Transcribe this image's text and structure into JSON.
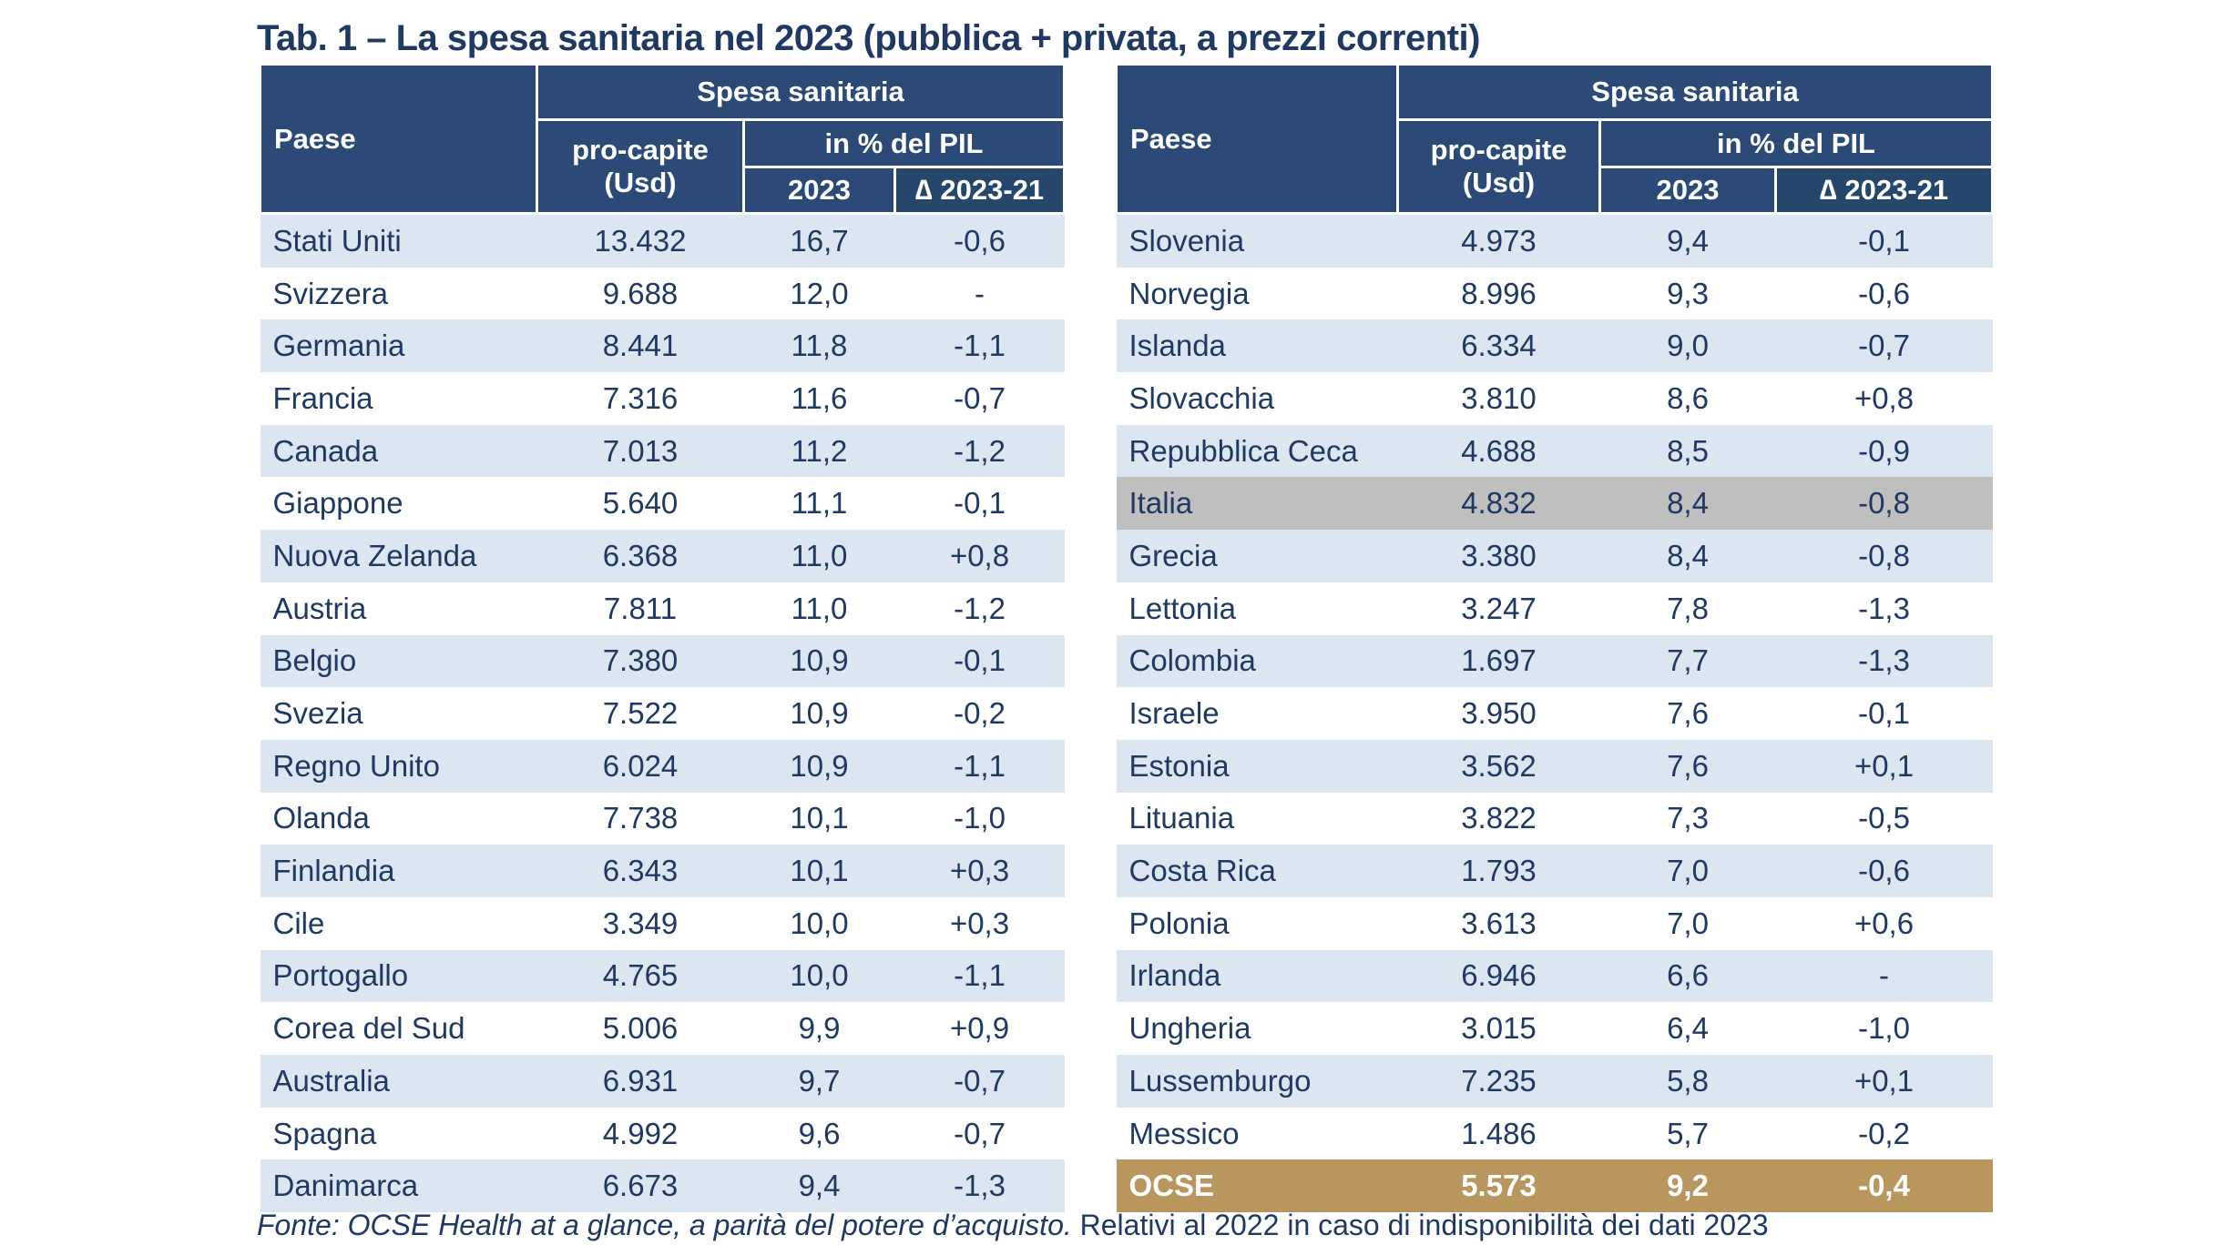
{
  "title": "Tab. 1 – La spesa sanitaria nel 2023 (pubblica + privata, a prezzi correnti)",
  "headers": {
    "country": "Paese",
    "group": "Spesa sanitaria",
    "per_capita": "pro-capite (Usd)",
    "pct_gdp": "in % del PIL",
    "year": "2023",
    "delta": "∆ 2023-21"
  },
  "colors": {
    "header": "#2b4a78",
    "stripe": "#dce6f0",
    "highlight": "#bfbfbf",
    "total": "#b8965d",
    "text": "#1f3864"
  },
  "left_rows": [
    [
      "Stati Uniti",
      "13.432",
      "16,7",
      "-0,6"
    ],
    [
      "Svizzera",
      "9.688",
      "12,0",
      "-"
    ],
    [
      "Germania",
      "8.441",
      "11,8",
      "-1,1"
    ],
    [
      "Francia",
      "7.316",
      "11,6",
      "-0,7"
    ],
    [
      "Canada",
      "7.013",
      "11,2",
      "-1,2"
    ],
    [
      "Giappone",
      "5.640",
      "11,1",
      "-0,1"
    ],
    [
      "Nuova Zelanda",
      "6.368",
      "11,0",
      "+0,8"
    ],
    [
      "Austria",
      "7.811",
      "11,0",
      "-1,2"
    ],
    [
      "Belgio",
      "7.380",
      "10,9",
      "-0,1"
    ],
    [
      "Svezia",
      "7.522",
      "10,9",
      "-0,2"
    ],
    [
      "Regno Unito",
      "6.024",
      "10,9",
      "-1,1"
    ],
    [
      "Olanda",
      "7.738",
      "10,1",
      "-1,0"
    ],
    [
      "Finlandia",
      "6.343",
      "10,1",
      "+0,3"
    ],
    [
      "Cile",
      "3.349",
      "10,0",
      "+0,3"
    ],
    [
      "Portogallo",
      "4.765",
      "10,0",
      "-1,1"
    ],
    [
      "Corea del Sud",
      "5.006",
      "9,9",
      "+0,9"
    ],
    [
      "Australia",
      "6.931",
      "9,7",
      "-0,7"
    ],
    [
      "Spagna",
      "4.992",
      "9,6",
      "-0,7"
    ],
    [
      "Danimarca",
      "6.673",
      "9,4",
      "-1,3"
    ]
  ],
  "right_rows": [
    [
      "Slovenia",
      "4.973",
      "9,4",
      "-0,1"
    ],
    [
      "Norvegia",
      "8.996",
      "9,3",
      "-0,6"
    ],
    [
      "Islanda",
      "6.334",
      "9,0",
      "-0,7"
    ],
    [
      "Slovacchia",
      "3.810",
      "8,6",
      "+0,8"
    ],
    [
      "Repubblica Ceca",
      "4.688",
      "8,5",
      "-0,9"
    ],
    [
      "Italia",
      "4.832",
      "8,4",
      "-0,8"
    ],
    [
      "Grecia",
      "3.380",
      "8,4",
      "-0,8"
    ],
    [
      "Lettonia",
      "3.247",
      "7,8",
      "-1,3"
    ],
    [
      "Colombia",
      "1.697",
      "7,7",
      "-1,3"
    ],
    [
      "Israele",
      "3.950",
      "7,6",
      "-0,1"
    ],
    [
      "Estonia",
      "3.562",
      "7,6",
      "+0,1"
    ],
    [
      "Lituania",
      "3.822",
      "7,3",
      "-0,5"
    ],
    [
      "Costa Rica",
      "1.793",
      "7,0",
      "-0,6"
    ],
    [
      "Polonia",
      "3.613",
      "7,0",
      "+0,6"
    ],
    [
      "Irlanda",
      "6.946",
      "6,6",
      "-"
    ],
    [
      "Ungheria",
      "3.015",
      "6,4",
      "-1,0"
    ],
    [
      "Lussemburgo",
      "7.235",
      "5,8",
      "+0,1"
    ],
    [
      "Messico",
      "1.486",
      "5,7",
      "-0,2"
    ],
    [
      "OCSE",
      "5.573",
      "9,2",
      "-0,4"
    ]
  ],
  "highlight_country": "Italia",
  "total_country": "OCSE",
  "footnote": {
    "source": "Fonte: OCSE Health at a glance, a parità del potere d’acquisto.",
    "note": " Relativi al 2022 in caso di indisponibilità dei dati 2023"
  }
}
